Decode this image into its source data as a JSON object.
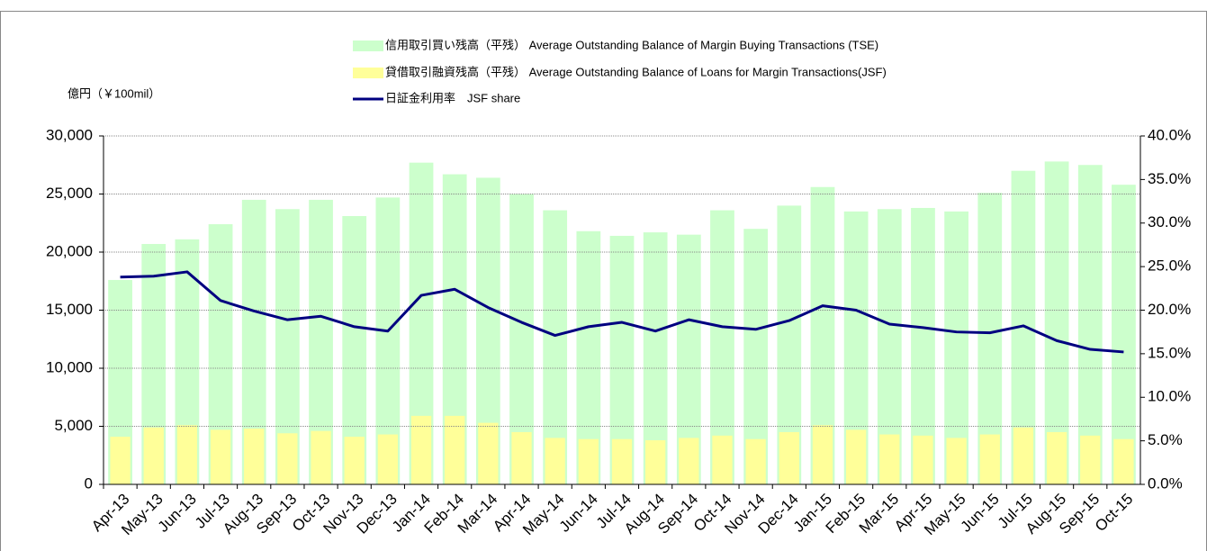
{
  "chart_data": {
    "type": "bar_line",
    "y_unit_label": "億円（￥100mil）",
    "categories": [
      "Apr-13",
      "May-13",
      "Jun-13",
      "Jul-13",
      "Aug-13",
      "Sep-13",
      "Oct-13",
      "Nov-13",
      "Dec-13",
      "Jan-14",
      "Feb-14",
      "Mar-14",
      "Apr-14",
      "May-14",
      "Jun-14",
      "Jul-14",
      "Aug-14",
      "Sep-14",
      "Oct-14",
      "Nov-14",
      "Dec-14",
      "Jan-15",
      "Feb-15",
      "Mar-15",
      "Apr-15",
      "May-15",
      "Jun-15",
      "Jul-15",
      "Aug-15",
      "Sep-15",
      "Oct-15"
    ],
    "series": [
      {
        "name": "信用取引買い残高（平残） Average Outstanding Balance of Margin Buying Transactions (TSE)",
        "color": "#ccffcc",
        "kind": "bar",
        "values": [
          17600,
          20700,
          21100,
          22400,
          24500,
          23700,
          24500,
          23100,
          24700,
          27700,
          26700,
          26400,
          25000,
          23600,
          21800,
          21400,
          21700,
          21500,
          23600,
          22000,
          24000,
          25600,
          23500,
          23700,
          23800,
          23500,
          25100,
          27000,
          27800,
          27500,
          25800
        ]
      },
      {
        "name": "貸借取引融資残高（平残） Average Outstanding Balance of Loans for Margin Transactions(JSF)",
        "color": "#ffff99",
        "kind": "bar",
        "values": [
          4100,
          4900,
          5100,
          4700,
          4800,
          4400,
          4600,
          4100,
          4300,
          5900,
          5900,
          5300,
          4500,
          4000,
          3900,
          3900,
          3800,
          4000,
          4200,
          3900,
          4500,
          5100,
          4700,
          4300,
          4200,
          4000,
          4300,
          4900,
          4500,
          4200,
          3900
        ]
      },
      {
        "name": "日証金利用率　JSF share",
        "color": "#000080",
        "kind": "line",
        "axis": "y2",
        "values": [
          23.8,
          23.9,
          24.4,
          21.1,
          19.9,
          18.9,
          19.3,
          18.1,
          17.6,
          21.7,
          22.4,
          20.3,
          18.6,
          17.1,
          18.1,
          18.6,
          17.6,
          18.9,
          18.1,
          17.8,
          18.8,
          20.5,
          20.0,
          18.4,
          18.0,
          17.5,
          17.4,
          18.2,
          16.5,
          15.5,
          15.2
        ]
      }
    ],
    "ylim": [
      0,
      30000
    ],
    "yticks": [
      0,
      {
        "value": 5000,
        "label": "5,000"
      },
      {
        "value": 10000,
        "label": "10,000"
      },
      {
        "value": 15000,
        "label": "15,000"
      },
      {
        "value": 20000,
        "label": "20,000"
      },
      {
        "value": 25000,
        "label": "25,000"
      },
      {
        "value": 30000,
        "label": "30,000"
      }
    ],
    "y2lim": [
      0,
      40
    ],
    "y2ticks": [
      {
        "value": 0,
        "label": "0.0%"
      },
      {
        "value": 5,
        "label": "5.0%"
      },
      {
        "value": 10,
        "label": "10.0%"
      },
      {
        "value": 15,
        "label": "15.0%"
      },
      {
        "value": 20,
        "label": "20.0%"
      },
      {
        "value": 25,
        "label": "25.0%"
      },
      {
        "value": 30,
        "label": "30.0%"
      },
      {
        "value": 35,
        "label": "35.0%"
      },
      {
        "value": 40,
        "label": "40.0%"
      }
    ],
    "grid": true
  }
}
